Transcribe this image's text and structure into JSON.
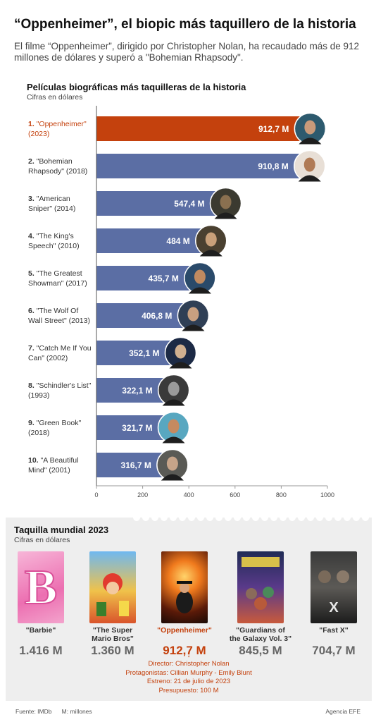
{
  "headline": "“Oppenheimer”, el biopic más taquillero de la historia",
  "lead": "El filme “Oppenheimer”, dirigido por Christopher Nolan, ha recaudado más de 912 millones de dólares y superó a \"Bohemian Rhapsody\".",
  "chart_data": {
    "type": "bar",
    "orientation": "horizontal",
    "title": "Películas biográficas más taquilleras de la historia",
    "subtitle": "Cifras en dólares",
    "categories": [
      {
        "rank": "1.",
        "line1": "\"Oppenheimer\"",
        "line2": "(2023)"
      },
      {
        "rank": "2.",
        "line1": "\"Bohemian",
        "line2": "Rhapsody\" (2018)"
      },
      {
        "rank": "3.",
        "line1": "\"American",
        "line2": "Sniper\" (2014)"
      },
      {
        "rank": "4.",
        "line1": "\"The King's",
        "line2": "Speech\" (2010)"
      },
      {
        "rank": "5.",
        "line1": "\"The Greatest",
        "line2": "Showman\" (2017)"
      },
      {
        "rank": "6.",
        "line1": "\"The Wolf Of",
        "line2": "Wall Street\" (2013)"
      },
      {
        "rank": "7.",
        "line1": "\"Catch Me If You",
        "line2": "Can\" (2002)"
      },
      {
        "rank": "8.",
        "line1": "\"Schindler's List\"",
        "line2": "(1993)"
      },
      {
        "rank": "9.",
        "line1": "\"Green Book\"",
        "line2": "(2018)"
      },
      {
        "rank": "10.",
        "line1": "\"A Beautiful",
        "line2": "Mind\" (2001)"
      }
    ],
    "values": [
      912.7,
      910.8,
      547.4,
      484,
      435.7,
      406.8,
      352.1,
      322.1,
      321.7,
      316.7
    ],
    "value_labels": [
      "912,7 M",
      "910,8 M",
      "547,4 M",
      "484 M",
      "435,7 M",
      "406,8 M",
      "352,1 M",
      "322,1 M",
      "321,7 M",
      "316,7 M"
    ],
    "xlim": [
      0,
      1000
    ],
    "xticks": [
      "0",
      "200",
      "400",
      "600",
      "800",
      "1000"
    ],
    "grid": false,
    "colors": {
      "highlight": "#c4410d",
      "bar": "#5b6ea4",
      "highlight_label": "#c4410d",
      "label": "#333333"
    }
  },
  "panel": {
    "title": "Taquilla mundial 2023",
    "subtitle": "Cifras en dólares",
    "movies": [
      {
        "name1": "\"Barbie\"",
        "name2": "",
        "value": "1.416 M"
      },
      {
        "name1": "\"The Super",
        "name2": "Mario Bros\"",
        "value": "1.360 M"
      },
      {
        "name1": "\"Oppenheimer\"",
        "name2": "",
        "value": "912,7 M"
      },
      {
        "name1": "\"Guardians of",
        "name2": "the Galaxy Vol. 3\"",
        "value": "845,5 M"
      },
      {
        "name1": "\"Fast X\"",
        "name2": "",
        "value": "704,7 M"
      }
    ],
    "details": {
      "director": "Director: Christopher Nolan",
      "cast": "Protagonistas: Cillian Murphy - Emily Blunt",
      "release": "Estreno: 21 de julio de 2023",
      "budget": "Presupuesto: 100 M"
    },
    "arrow": "↓"
  },
  "footer": {
    "source": "Fuente: IMDb",
    "note": "M: millones",
    "agency": "Agencia EFE"
  }
}
